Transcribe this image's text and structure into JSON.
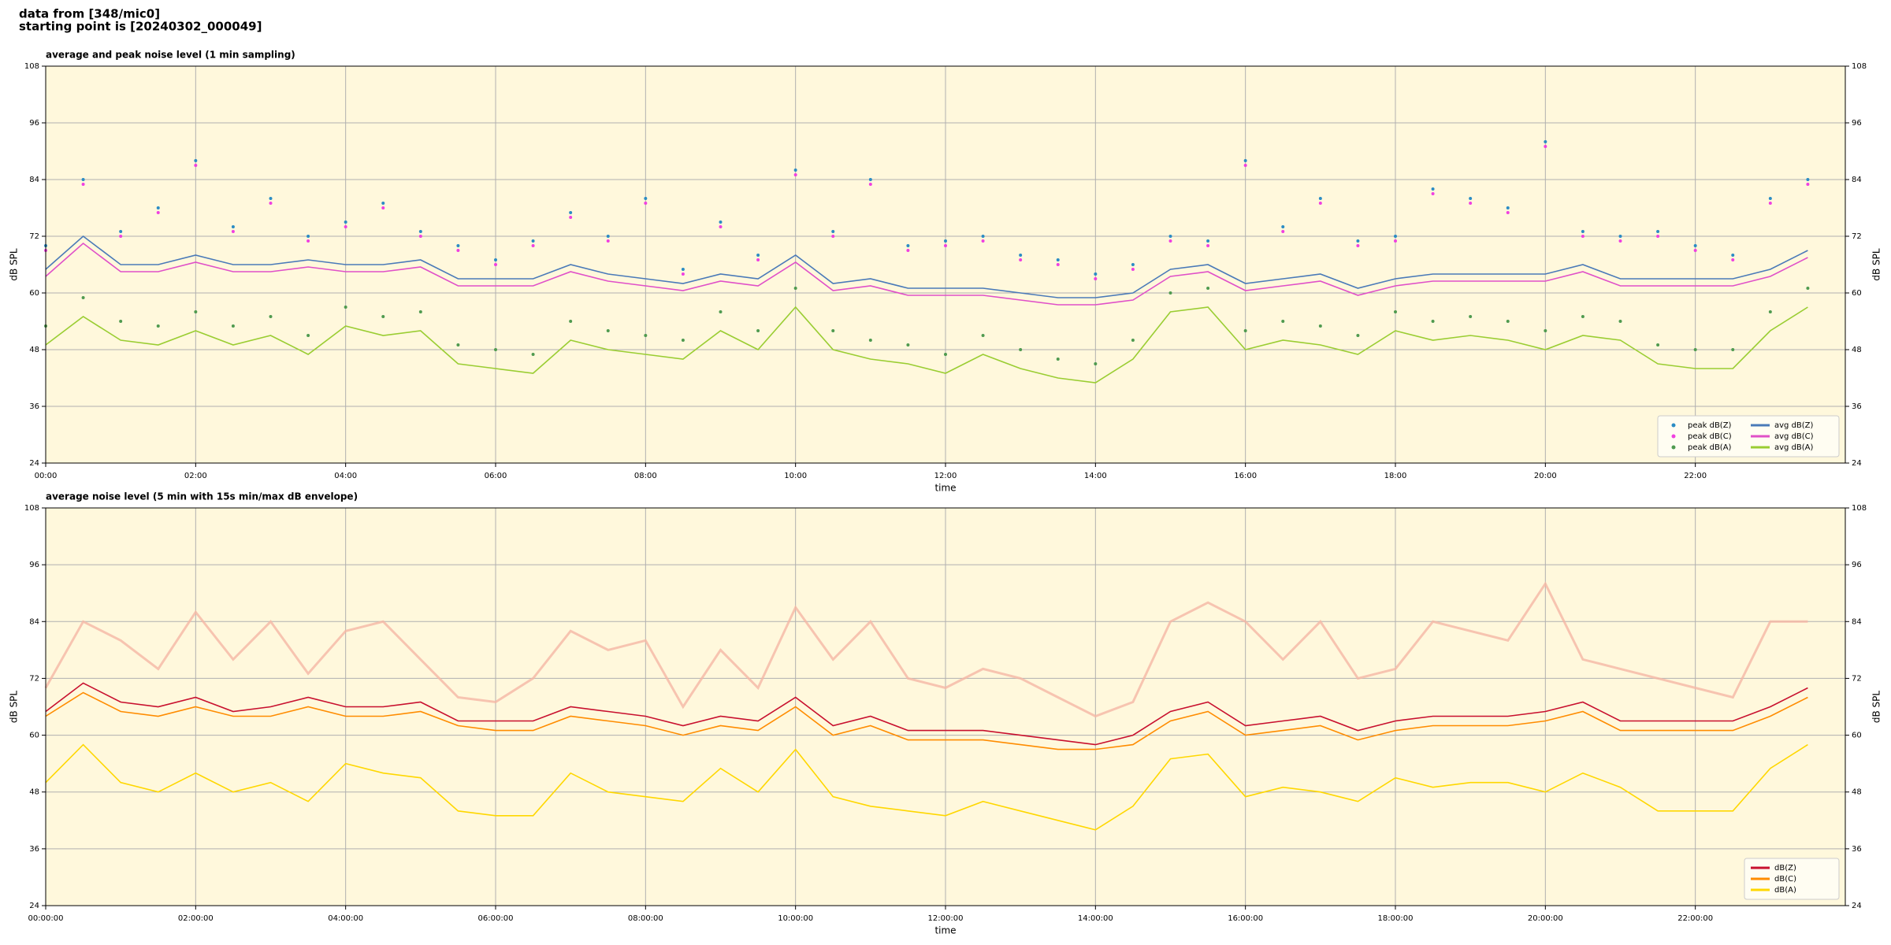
{
  "header": {
    "lines": [
      "data from [348/mic0]",
      "starting point is [20240302_000049]"
    ]
  },
  "chart_data": [
    {
      "type": "line",
      "title": "average and peak noise level (1 min sampling)",
      "xlabel": "time",
      "ylabel": "dB SPL",
      "x": [
        0,
        30,
        60,
        90,
        120,
        150,
        180,
        210,
        240,
        270,
        300,
        330,
        360,
        390,
        420,
        450,
        480,
        510,
        540,
        570,
        600,
        630,
        660,
        690,
        720,
        750,
        780,
        810,
        840,
        870,
        900,
        930,
        960,
        990,
        1020,
        1050,
        1080,
        1110,
        1140,
        1170,
        1200,
        1230,
        1260,
        1290,
        1320,
        1350,
        1380,
        1410
      ],
      "xlim": [
        0,
        1440
      ],
      "xticks": [
        {
          "value": 0,
          "label": "00:00"
        },
        {
          "value": 120,
          "label": "02:00"
        },
        {
          "value": 240,
          "label": "04:00"
        },
        {
          "value": 360,
          "label": "06:00"
        },
        {
          "value": 480,
          "label": "08:00"
        },
        {
          "value": 600,
          "label": "10:00"
        },
        {
          "value": 720,
          "label": "12:00"
        },
        {
          "value": 840,
          "label": "14:00"
        },
        {
          "value": 960,
          "label": "16:00"
        },
        {
          "value": 1080,
          "label": "18:00"
        },
        {
          "value": 1200,
          "label": "20:00"
        },
        {
          "value": 1320,
          "label": "22:00"
        }
      ],
      "ylim": [
        24,
        108
      ],
      "yticks": [
        24,
        36,
        48,
        60,
        72,
        84,
        96,
        108
      ],
      "grid": true,
      "legend": "lower right",
      "legend_columns": 2,
      "series": [
        {
          "name": "peak dB(Z)",
          "marker": "dot",
          "color": "#2b8cc4",
          "values": [
            70,
            84,
            73,
            78,
            88,
            74,
            80,
            72,
            75,
            79,
            73,
            70,
            67,
            71,
            77,
            72,
            80,
            65,
            75,
            68,
            86,
            73,
            84,
            70,
            71,
            72,
            68,
            67,
            64,
            66,
            72,
            71,
            88,
            74,
            80,
            71,
            72,
            82,
            80,
            78,
            92,
            73,
            72,
            73,
            70,
            68,
            80,
            84
          ]
        },
        {
          "name": "peak dB(C)",
          "marker": "dot",
          "color": "#f040e0",
          "values": [
            69,
            83,
            72,
            77,
            87,
            73,
            79,
            71,
            74,
            78,
            72,
            69,
            66,
            70,
            76,
            71,
            79,
            64,
            74,
            67,
            85,
            72,
            83,
            69,
            70,
            71,
            67,
            66,
            63,
            65,
            71,
            70,
            87,
            73,
            79,
            70,
            71,
            81,
            79,
            77,
            91,
            72,
            71,
            72,
            69,
            67,
            79,
            83
          ]
        },
        {
          "name": "peak dB(A)",
          "marker": "dot",
          "color": "#4f9a4f",
          "values": [
            53,
            59,
            54,
            53,
            56,
            53,
            55,
            51,
            57,
            55,
            56,
            49,
            48,
            47,
            54,
            52,
            51,
            50,
            56,
            52,
            61,
            52,
            50,
            49,
            47,
            51,
            48,
            46,
            45,
            50,
            60,
            61,
            52,
            54,
            53,
            51,
            56,
            54,
            55,
            54,
            52,
            55,
            54,
            49,
            48,
            48,
            56,
            61
          ]
        },
        {
          "name": "avg dB(Z)",
          "marker": "line",
          "color": "#4a7ab8",
          "values": [
            65,
            72,
            66,
            66,
            68,
            66,
            66,
            67,
            66,
            66,
            67,
            63,
            63,
            63,
            66,
            64,
            63,
            62,
            64,
            63,
            68,
            62,
            63,
            61,
            61,
            61,
            60,
            59,
            59,
            60,
            65,
            66,
            62,
            63,
            64,
            61,
            63,
            64,
            64,
            64,
            64,
            66,
            63,
            63,
            63,
            63,
            65,
            69
          ]
        },
        {
          "name": "avg dB(C)",
          "marker": "line",
          "color": "#e050c8",
          "values": [
            63.5,
            70.5,
            64.5,
            64.5,
            66.5,
            64.5,
            64.5,
            65.5,
            64.5,
            64.5,
            65.5,
            61.5,
            61.5,
            61.5,
            64.5,
            62.5,
            61.5,
            60.5,
            62.5,
            61.5,
            66.5,
            60.5,
            61.5,
            59.5,
            59.5,
            59.5,
            58.5,
            57.5,
            57.5,
            58.5,
            63.5,
            64.5,
            60.5,
            61.5,
            62.5,
            59.5,
            61.5,
            62.5,
            62.5,
            62.5,
            62.5,
            64.5,
            61.5,
            61.5,
            61.5,
            61.5,
            63.5,
            67.5
          ]
        },
        {
          "name": "avg dB(A)",
          "marker": "line",
          "color": "#9acd32",
          "values": [
            49,
            55,
            50,
            49,
            52,
            49,
            51,
            47,
            53,
            51,
            52,
            45,
            44,
            43,
            50,
            48,
            47,
            46,
            52,
            48,
            57,
            48,
            46,
            45,
            43,
            47,
            44,
            42,
            41,
            46,
            56,
            57,
            48,
            50,
            49,
            47,
            52,
            50,
            51,
            50,
            48,
            51,
            50,
            45,
            44,
            44,
            52,
            57
          ]
        }
      ]
    },
    {
      "type": "line",
      "title": "average noise level (5 min with 15s min/max dB envelope)",
      "xlabel": "time",
      "ylabel": "dB SPL",
      "x": [
        0,
        30,
        60,
        90,
        120,
        150,
        180,
        210,
        240,
        270,
        300,
        330,
        360,
        390,
        420,
        450,
        480,
        510,
        540,
        570,
        600,
        630,
        660,
        690,
        720,
        750,
        780,
        810,
        840,
        870,
        900,
        930,
        960,
        990,
        1020,
        1050,
        1080,
        1110,
        1140,
        1170,
        1200,
        1230,
        1260,
        1290,
        1320,
        1350,
        1380,
        1410
      ],
      "xlim": [
        0,
        1440
      ],
      "xticks": [
        {
          "value": 0,
          "label": "00:00:00"
        },
        {
          "value": 120,
          "label": "02:00:00"
        },
        {
          "value": 240,
          "label": "04:00:00"
        },
        {
          "value": 360,
          "label": "06:00:00"
        },
        {
          "value": 480,
          "label": "08:00:00"
        },
        {
          "value": 600,
          "label": "10:00:00"
        },
        {
          "value": 720,
          "label": "12:00:00"
        },
        {
          "value": 840,
          "label": "14:00:00"
        },
        {
          "value": 960,
          "label": "16:00:00"
        },
        {
          "value": 1080,
          "label": "18:00:00"
        },
        {
          "value": 1200,
          "label": "20:00:00"
        },
        {
          "value": 1320,
          "label": "22:00:00"
        }
      ],
      "ylim": [
        24,
        108
      ],
      "yticks": [
        24,
        36,
        48,
        60,
        72,
        84,
        96,
        108
      ],
      "grid": true,
      "legend": "lower right",
      "legend_columns": 1,
      "envelope": {
        "color": "#f5b7a5",
        "values": [
          70,
          84,
          80,
          74,
          86,
          76,
          84,
          73,
          82,
          84,
          76,
          68,
          67,
          72,
          82,
          78,
          80,
          66,
          78,
          70,
          87,
          76,
          84,
          72,
          70,
          74,
          72,
          68,
          64,
          67,
          84,
          88,
          84,
          76,
          84,
          72,
          74,
          84,
          82,
          80,
          92,
          76,
          74,
          72,
          70,
          68,
          84,
          84
        ]
      },
      "series": [
        {
          "name": "dB(Z)",
          "marker": "line",
          "color": "#c8102e",
          "values": [
            65,
            71,
            67,
            66,
            68,
            65,
            66,
            68,
            66,
            66,
            67,
            63,
            63,
            63,
            66,
            65,
            64,
            62,
            64,
            63,
            68,
            62,
            64,
            61,
            61,
            61,
            60,
            59,
            58,
            60,
            65,
            67,
            62,
            63,
            64,
            61,
            63,
            64,
            64,
            64,
            65,
            67,
            63,
            63,
            63,
            63,
            66,
            70
          ]
        },
        {
          "name": "dB(C)",
          "marker": "line",
          "color": "#ff8c00",
          "values": [
            64,
            69,
            65,
            64,
            66,
            64,
            64,
            66,
            64,
            64,
            65,
            62,
            61,
            61,
            64,
            63,
            62,
            60,
            62,
            61,
            66,
            60,
            62,
            59,
            59,
            59,
            58,
            57,
            57,
            58,
            63,
            65,
            60,
            61,
            62,
            59,
            61,
            62,
            62,
            62,
            63,
            65,
            61,
            61,
            61,
            61,
            64,
            68
          ]
        },
        {
          "name": "dB(A)",
          "marker": "line",
          "color": "#ffd700",
          "values": [
            50,
            58,
            50,
            48,
            52,
            48,
            50,
            46,
            54,
            52,
            51,
            44,
            43,
            43,
            52,
            48,
            47,
            46,
            53,
            48,
            57,
            47,
            45,
            44,
            43,
            46,
            44,
            42,
            40,
            45,
            55,
            56,
            47,
            49,
            48,
            46,
            51,
            49,
            50,
            50,
            48,
            52,
            49,
            44,
            44,
            44,
            53,
            58
          ]
        }
      ]
    }
  ]
}
